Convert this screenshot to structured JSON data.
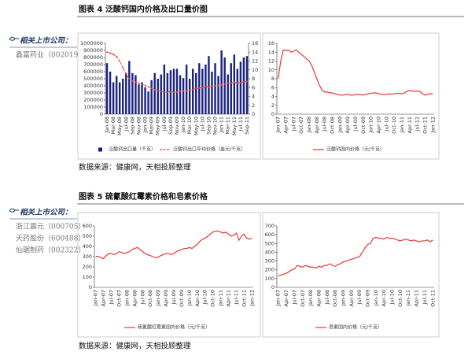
{
  "sections": [
    {
      "title": "图表 4 泛酸钙国内价格及出口量价图",
      "companies_heading": "相关上市公司：",
      "companies": [
        "鑫富药业（002019"
      ],
      "source": "数据来源：健康网，天相投顾整理"
    },
    {
      "title": "图表 5 硫氰酸红霉素价格和皂素价格",
      "companies_heading": "相关上市公司：",
      "companies": [
        "浙江震元（000705）",
        "天药股份（600488）",
        "仙琚制药（002322）"
      ],
      "source": "数据来源：健康网，天相投顾整理"
    }
  ],
  "chart_data": [
    {
      "type": "combo",
      "legend": "bottom",
      "categories": [
        "Jan-08",
        null,
        "Mar-08",
        null,
        "May-08",
        null,
        "Jul-08",
        null,
        "Sep-08",
        null,
        "Nov-08",
        null,
        "Jan-09",
        null,
        "Mar-09",
        null,
        "May-09",
        null,
        "Jul-09",
        null,
        "Sep-09",
        null,
        "Nov-09",
        null,
        "Jan-10",
        null,
        "Mar-10",
        null,
        "May-10",
        null,
        "Jul-10",
        null,
        "Sep-10",
        null,
        "Nov-10",
        null,
        "Jan-11",
        null,
        "Mar-11",
        null,
        "May-11",
        null,
        "Jul-11",
        null,
        "Sep-11"
      ],
      "ylim": [
        0,
        1000000
      ],
      "yticks": [
        0,
        100000,
        200000,
        300000,
        400000,
        500000,
        600000,
        700000,
        800000,
        900000,
        1000000
      ],
      "y2lim": [
        0,
        16
      ],
      "y2ticks": [
        0,
        2,
        4,
        6,
        8,
        10,
        12,
        14,
        16
      ],
      "series": [
        {
          "name": "泛酸钙出口量（千克）",
          "kind": "bar",
          "color": "#1a237e",
          "values": [
            720000,
            600000,
            450000,
            540000,
            450000,
            500000,
            580000,
            750000,
            580000,
            550000,
            420000,
            450000,
            380000,
            320000,
            480000,
            580000,
            500000,
            560000,
            700000,
            580000,
            620000,
            640000,
            640000,
            550000,
            510000,
            700000,
            500000,
            640000,
            580000,
            720000,
            640000,
            700000,
            820000,
            600000,
            720000,
            540000,
            900000,
            800000,
            560000,
            720000,
            840000,
            640000,
            740000,
            800000,
            820000
          ]
        },
        {
          "name": "泛酸钙出口平均价格（美元/千克）",
          "kind": "line",
          "axis": "y2",
          "color": "#e53935",
          "dash": true,
          "marker": true,
          "values": [
            14,
            13.8,
            13.5,
            13,
            12,
            10.5,
            9,
            8,
            7.5,
            7.2,
            7,
            6.8,
            6.5,
            6.2,
            5.8,
            5.5,
            5.3,
            5.2,
            5,
            5,
            5.1,
            5,
            5,
            5.1,
            5.2,
            5.3,
            5.5,
            5.6,
            5.8,
            5.9,
            6,
            6.2,
            6.1,
            6.3,
            6.4,
            6.5,
            6.6,
            6.8,
            7,
            7,
            7.2,
            7,
            7.1,
            7.3,
            7.4
          ]
        }
      ]
    },
    {
      "type": "line",
      "legend": "bottom",
      "categories": [
        "Jan-07",
        null,
        null,
        "Apr-07",
        null,
        null,
        "Jul-07",
        null,
        null,
        "Oct-07",
        null,
        null,
        "Jan-08",
        null,
        null,
        "Apr-08",
        null,
        null,
        "Jul-08",
        null,
        null,
        "Oct-08",
        null,
        null,
        "Jan-09",
        null,
        null,
        "Apr-09",
        null,
        null,
        "Jul-09",
        null,
        null,
        "Oct-09",
        null,
        null,
        "Jan-10",
        null,
        null,
        "Apr-10",
        null,
        null,
        "Jul-10",
        null,
        null,
        "Oct-10",
        null,
        null,
        "Jan-11",
        null,
        null,
        "Apr-11",
        null,
        null,
        "Jul-11",
        null,
        null,
        "Oct-11",
        null,
        null,
        "Jan-12"
      ],
      "ylim": [
        0,
        16
      ],
      "yticks": [
        0,
        2,
        4,
        6,
        8,
        10,
        12,
        14,
        16
      ],
      "series": [
        {
          "name": "泛酸钙国内价格（元/千克）",
          "color": "#e53935",
          "values": [
            8,
            12,
            14.5,
            14.3,
            14.5,
            14,
            14.2,
            14.5,
            14,
            13.5,
            13,
            12.5,
            12,
            11,
            9.5,
            8,
            6.5,
            5.5,
            5,
            5,
            4.8,
            4.8,
            4.6,
            4.5,
            4.3,
            4.3,
            4.4,
            4.5,
            4.3,
            4.3,
            4.4,
            4.5,
            4.4,
            4.3,
            4.5,
            4.6,
            4.7,
            4.8,
            4.8,
            4.6,
            4.5,
            4.4,
            4.5,
            4.6,
            4.5,
            4.6,
            4.7,
            4.7,
            4.6,
            4.8,
            5.2,
            5.3,
            5.2,
            5.2,
            5.2,
            5.1,
            4.6,
            4.3,
            4.5,
            4.6,
            4.6
          ]
        }
      ]
    },
    {
      "type": "line",
      "legend": "bottom",
      "categories": [
        "Jan-07",
        null,
        null,
        "Apr-07",
        null,
        null,
        "Jul-07",
        null,
        null,
        "Oct-07",
        null,
        null,
        "Jan-08",
        null,
        null,
        "Apr-08",
        null,
        null,
        "Jul-08",
        null,
        null,
        "Oct-08",
        null,
        null,
        "Jan-09",
        null,
        null,
        "Apr-09",
        null,
        null,
        "Jul-09",
        null,
        null,
        "Oct-09",
        null,
        null,
        "Jan-10",
        null,
        null,
        "Apr-10",
        null,
        null,
        "Jul-10",
        null,
        null,
        "Oct-10",
        null,
        null,
        "Jan-11",
        null,
        null,
        "Apr-11",
        null,
        null,
        "Jul-11",
        null,
        null,
        "Oct-11",
        null,
        null,
        "Jan-12"
      ],
      "ylim": [
        0,
        600
      ],
      "yticks": [
        0,
        100,
        200,
        300,
        400,
        500,
        600
      ],
      "series": [
        {
          "name": "硫氰酸红霉素国内价格（元/千克）",
          "color": "#e53935",
          "values": [
            300,
            305,
            290,
            280,
            310,
            330,
            330,
            320,
            330,
            350,
            340,
            330,
            340,
            350,
            370,
            380,
            390,
            370,
            350,
            330,
            320,
            310,
            300,
            290,
            295,
            310,
            320,
            330,
            330,
            320,
            330,
            350,
            360,
            370,
            380,
            380,
            390,
            380,
            400,
            420,
            450,
            470,
            480,
            500,
            520,
            540,
            550,
            550,
            540,
            530,
            540,
            520,
            500,
            510,
            530,
            460,
            500,
            520,
            480,
            470,
            480
          ]
        }
      ]
    },
    {
      "type": "line",
      "legend": "bottom",
      "categories": [
        "Jan-07",
        null,
        null,
        "Apr-07",
        null,
        null,
        "Jul-07",
        null,
        null,
        "Oct-07",
        null,
        null,
        "Jan-08",
        null,
        null,
        "Apr-08",
        null,
        null,
        "Jul-08",
        null,
        null,
        "Oct-08",
        null,
        null,
        "Jan-09",
        null,
        null,
        "Apr-09",
        null,
        null,
        "Jul-09",
        null,
        null,
        "Oct-09",
        null,
        null,
        "Jan-10",
        null,
        null,
        "Apr-10",
        null,
        null,
        "Jul-10",
        null,
        null,
        "Oct-10",
        null,
        null,
        "Jan-11",
        null,
        null,
        "Apr-11",
        null,
        null,
        "Jul-11",
        null,
        null,
        "Oct-11"
      ],
      "ylim": [
        0,
        700
      ],
      "yticks": [
        0,
        100,
        200,
        300,
        400,
        500,
        600,
        700
      ],
      "series": [
        {
          "name": "皂素国内价格（元/千克）",
          "color": "#e53935",
          "values": [
            130,
            140,
            150,
            160,
            180,
            200,
            210,
            250,
            240,
            230,
            250,
            240,
            230,
            230,
            220,
            240,
            230,
            250,
            250,
            270,
            250,
            240,
            260,
            270,
            290,
            300,
            310,
            320,
            330,
            340,
            350,
            400,
            450,
            490,
            500,
            560,
            570,
            560,
            560,
            550,
            570,
            560,
            560,
            550,
            540,
            530,
            540,
            550,
            540,
            530,
            540,
            530,
            520,
            530,
            530,
            540,
            520,
            540
          ]
        }
      ]
    }
  ]
}
